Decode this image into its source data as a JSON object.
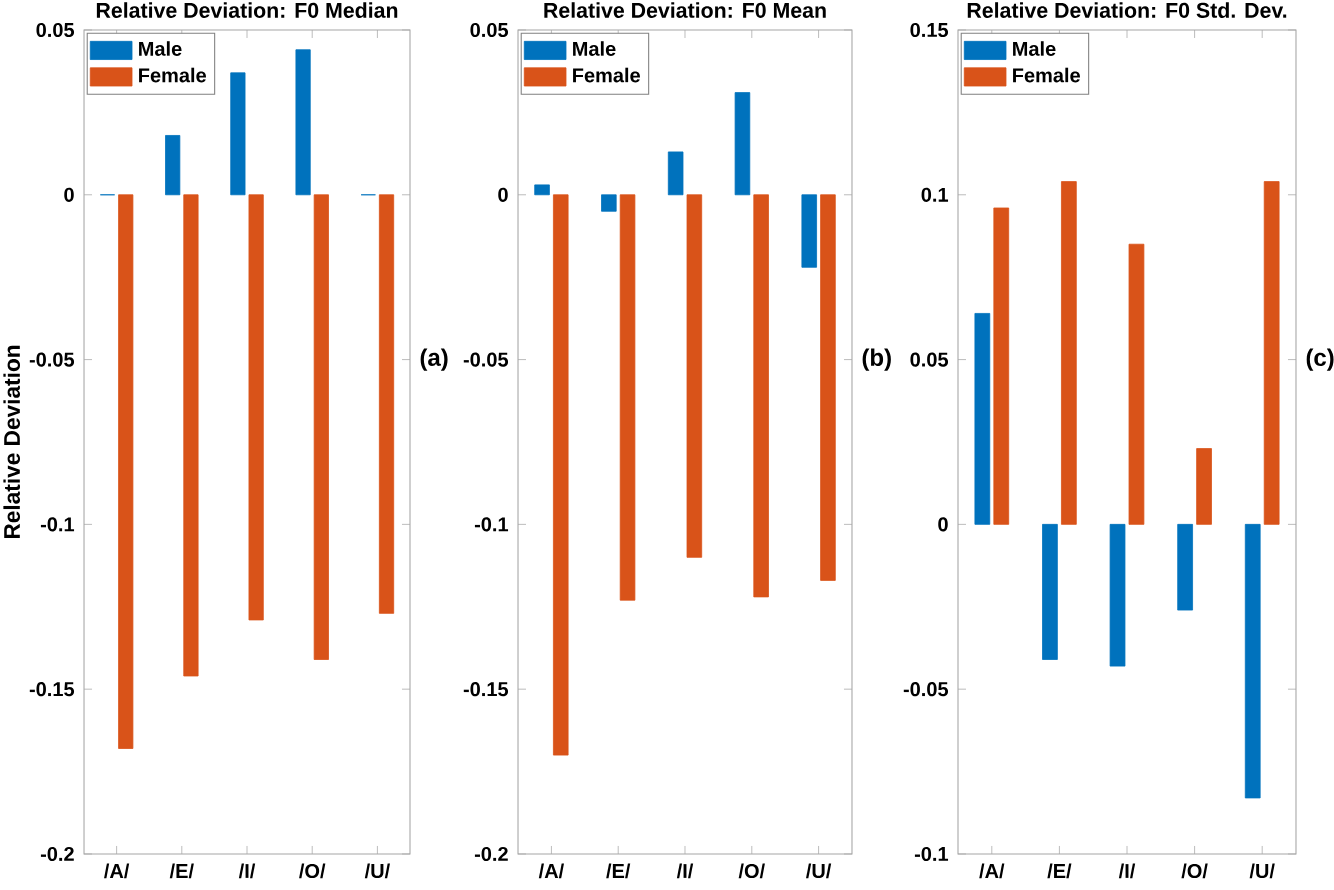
{
  "chart_data": [
    {
      "type": "bar",
      "title": "Relative Deviation: F0 Median",
      "ylabel": "Relative Deviation",
      "annotations": [
        "(a)"
      ],
      "categories": [
        "/A/",
        "/E/",
        "/I/",
        "/O/",
        "/U/"
      ],
      "series": [
        {
          "name": "Male",
          "color": "#0072bd",
          "values": [
            0,
            0.018,
            0.037,
            0.044,
            0
          ]
        },
        {
          "name": "Female",
          "color": "#d95319",
          "values": [
            -0.168,
            -0.146,
            -0.129,
            -0.141,
            -0.127
          ]
        }
      ],
      "ylim": [
        -0.2,
        0.05
      ],
      "yticks": [
        -0.2,
        -0.15,
        -0.1,
        -0.05,
        0,
        0.05
      ],
      "legend": "top left",
      "grid": false
    },
    {
      "type": "bar",
      "title": "Relative Deviation: F0 Mean",
      "annotations": [
        "(b)"
      ],
      "categories": [
        "/A/",
        "/E/",
        "/I/",
        "/O/",
        "/U/"
      ],
      "series": [
        {
          "name": "Male",
          "color": "#0072bd",
          "values": [
            0.003,
            -0.005,
            0.013,
            0.031,
            -0.022
          ]
        },
        {
          "name": "Female",
          "color": "#d95319",
          "values": [
            -0.17,
            -0.123,
            -0.11,
            -0.122,
            -0.117
          ]
        }
      ],
      "ylim": [
        -0.2,
        0.05
      ],
      "yticks": [
        -0.2,
        -0.15,
        -0.1,
        -0.05,
        0,
        0.05
      ],
      "legend": "top left",
      "grid": false
    },
    {
      "type": "bar",
      "title": "Relative Deviation: F0 Std. Dev.",
      "annotations": [
        "(c)"
      ],
      "categories": [
        "/A/",
        "/E/",
        "/I/",
        "/O/",
        "/U/"
      ],
      "series": [
        {
          "name": "Male",
          "color": "#0072bd",
          "values": [
            0.064,
            -0.041,
            -0.043,
            -0.026,
            -0.083
          ]
        },
        {
          "name": "Female",
          "color": "#d95319",
          "values": [
            0.096,
            0.104,
            0.085,
            0.023,
            0.104
          ]
        }
      ],
      "ylim": [
        -0.1,
        0.15
      ],
      "yticks": [
        -0.1,
        -0.05,
        0,
        0.05,
        0.1,
        0.15
      ],
      "legend": "top left",
      "grid": false
    }
  ]
}
